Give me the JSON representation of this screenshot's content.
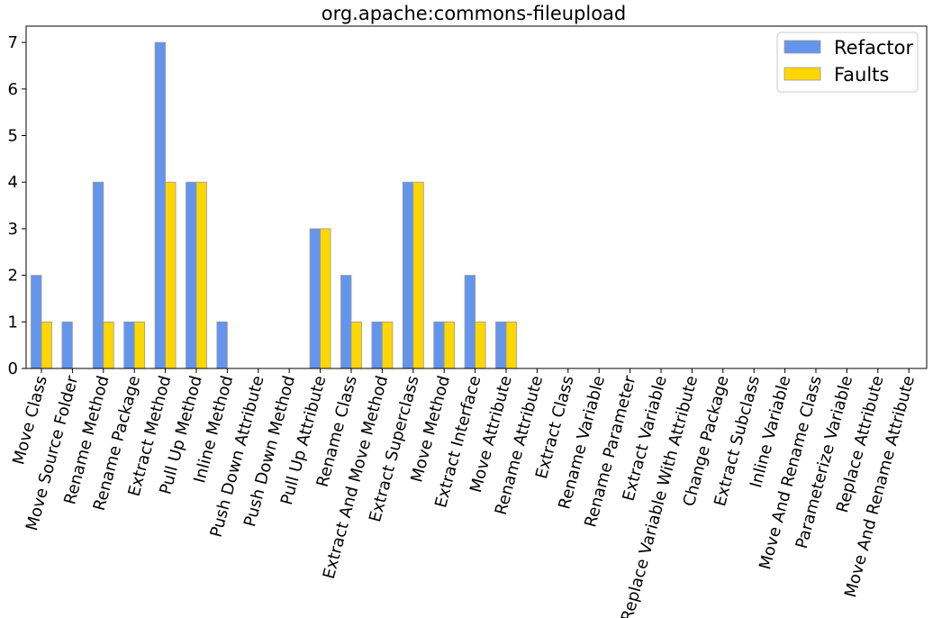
{
  "chart_data": {
    "type": "bar",
    "title": "org.apache:commons-fileupload",
    "xlabel": "",
    "ylabel": "",
    "ylim": [
      0,
      7.35
    ],
    "yticks": [
      0,
      1,
      2,
      3,
      4,
      5,
      6,
      7
    ],
    "grid": false,
    "legend_position": "top-right",
    "categories": [
      "Move Class",
      "Move Source Folder",
      "Rename Method",
      "Rename Package",
      "Extract Method",
      "Pull Up Method",
      "Inline Method",
      "Push Down Attribute",
      "Push Down Method",
      "Pull Up Attribute",
      "Rename Class",
      "Extract And Move Method",
      "Extract Superclass",
      "Move Method",
      "Extract Interface",
      "Move Attribute",
      "Rename Attribute",
      "Extract Class",
      "Rename Variable",
      "Rename Parameter",
      "Extract Variable",
      "Replace Variable With Attribute",
      "Change Package",
      "Extract Subclass",
      "Inline Variable",
      "Move And Rename Class",
      "Parameterize Variable",
      "Replace Attribute",
      "Move And Rename Attribute"
    ],
    "series": [
      {
        "name": "Refactor",
        "color": "#6495ED",
        "values": [
          2,
          1,
          4,
          1,
          7,
          4,
          1,
          0,
          0,
          3,
          2,
          1,
          4,
          1,
          2,
          1,
          0,
          0,
          0,
          0,
          0,
          0,
          0,
          0,
          0,
          0,
          0,
          0,
          0
        ]
      },
      {
        "name": "Faults",
        "color": "#FFD700",
        "values": [
          1,
          0,
          1,
          1,
          4,
          4,
          0,
          0,
          0,
          3,
          1,
          1,
          4,
          1,
          1,
          1,
          0,
          0,
          0,
          0,
          0,
          0,
          0,
          0,
          0,
          0,
          0,
          0,
          0
        ]
      }
    ],
    "bar_edge_color": "#999999"
  }
}
